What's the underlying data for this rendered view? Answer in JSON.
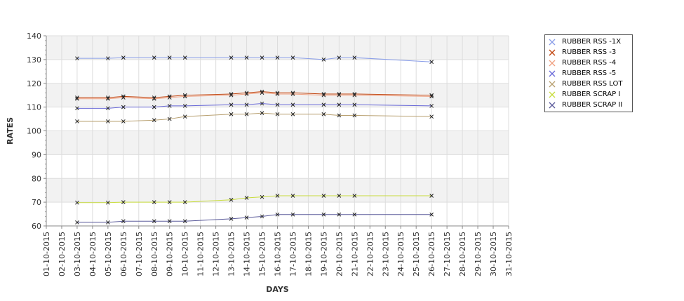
{
  "chart_data": {
    "type": "line",
    "title": "",
    "xlabel": "DAYS",
    "ylabel": "RATES",
    "ylim": [
      60,
      140
    ],
    "yticks": [
      60,
      70,
      80,
      90,
      100,
      110,
      120,
      130,
      140
    ],
    "xlim": [
      "01-10-2015",
      "31-10-2015"
    ],
    "x_tick_labels": [
      "01-10-2015",
      "02-10-2015",
      "03-10-2015",
      "04-10-2015",
      "05-10-2015",
      "06-10-2015",
      "07-10-2015",
      "08-10-2015",
      "09-10-2015",
      "10-10-2015",
      "11-10-2015",
      "12-10-2015",
      "13-10-2015",
      "14-10-2015",
      "15-10-2015",
      "16-10-2015",
      "17-10-2015",
      "18-10-2015",
      "19-10-2015",
      "20-10-2015",
      "21-10-2015",
      "22-10-2015",
      "23-10-2015",
      "24-10-2015",
      "25-10-2015",
      "26-10-2015",
      "27-10-2015",
      "28-10-2015",
      "29-10-2015",
      "30-10-2015",
      "31-10-2015"
    ],
    "x": [
      "03-10-2015",
      "05-10-2015",
      "06-10-2015",
      "08-10-2015",
      "09-10-2015",
      "10-10-2015",
      "13-10-2015",
      "14-10-2015",
      "15-10-2015",
      "16-10-2015",
      "17-10-2015",
      "19-10-2015",
      "20-10-2015",
      "21-10-2015",
      "26-10-2015"
    ],
    "grid": true,
    "legend_position": "right",
    "series": [
      {
        "name": "RUBBER RSS -1X",
        "color": "#8a9ee8",
        "values": [
          130.5,
          130.5,
          130.8,
          130.8,
          130.8,
          130.8,
          130.8,
          130.8,
          130.8,
          130.8,
          130.8,
          130.0,
          130.8,
          130.8,
          129.0
        ]
      },
      {
        "name": "RUBBER RSS -3",
        "color": "#c1440e",
        "values": [
          114.0,
          114.0,
          114.5,
          114.0,
          114.5,
          115.0,
          115.5,
          116.0,
          116.5,
          116.0,
          116.0,
          115.5,
          115.5,
          115.5,
          115.0
        ]
      },
      {
        "name": "RUBBER RSS -4",
        "color": "#f0a080",
        "values": [
          113.5,
          113.5,
          114.0,
          113.5,
          114.0,
          114.5,
          115.0,
          115.5,
          116.0,
          115.5,
          115.5,
          115.0,
          115.0,
          115.0,
          114.5
        ]
      },
      {
        "name": "RUBBER RSS -5",
        "color": "#6a6ad8",
        "values": [
          109.5,
          109.5,
          110.0,
          110.0,
          110.5,
          110.5,
          111.0,
          111.0,
          111.5,
          111.0,
          111.0,
          111.0,
          111.0,
          111.0,
          110.5
        ]
      },
      {
        "name": "RUBBER RSS LOT",
        "color": "#b8a070",
        "values": [
          104.0,
          104.0,
          104.0,
          104.5,
          105.0,
          106.0,
          107.0,
          107.0,
          107.5,
          107.0,
          107.0,
          107.0,
          106.5,
          106.5,
          106.0
        ]
      },
      {
        "name": "RUBBER SCRAP I",
        "color": "#c8dc3c",
        "values": [
          69.8,
          69.8,
          70.0,
          70.0,
          70.0,
          70.0,
          71.0,
          71.8,
          72.2,
          72.7,
          72.7,
          72.7,
          72.7,
          72.7,
          72.7
        ]
      },
      {
        "name": "RUBBER SCRAP II",
        "color": "#5a5a9a",
        "values": [
          61.5,
          61.5,
          62.0,
          62.0,
          62.0,
          62.0,
          63.0,
          63.5,
          64.0,
          64.8,
          64.8,
          64.8,
          64.8,
          64.8,
          64.8
        ]
      }
    ]
  }
}
